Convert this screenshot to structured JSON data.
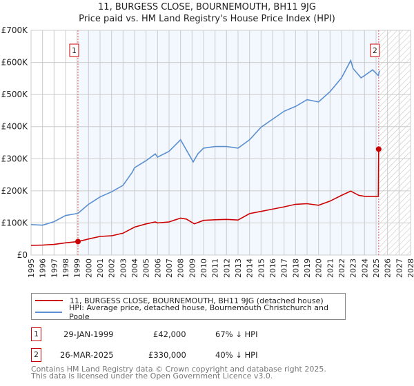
{
  "title_line1": "11, BURGESS CLOSE, BOURNEMOUTH, BH11 9JG",
  "title_line2": "Price paid vs. HM Land Registry's House Price Index (HPI)",
  "chart_data": {
    "type": "line",
    "xlim": [
      1995,
      2028
    ],
    "ylim": [
      0,
      700000
    ],
    "y_ticks": [
      {
        "v": 0,
        "label": "£0"
      },
      {
        "v": 100000,
        "label": "£100K"
      },
      {
        "v": 200000,
        "label": "£200K"
      },
      {
        "v": 300000,
        "label": "£300K"
      },
      {
        "v": 400000,
        "label": "£400K"
      },
      {
        "v": 500000,
        "label": "£500K"
      },
      {
        "v": 600000,
        "label": "£600K"
      },
      {
        "v": 700000,
        "label": "£700K"
      }
    ],
    "x_ticks": [
      "1995",
      "1996",
      "1997",
      "1998",
      "1999",
      "2000",
      "2001",
      "2002",
      "2003",
      "2004",
      "2005",
      "2006",
      "2007",
      "2008",
      "2009",
      "2010",
      "2011",
      "2012",
      "2013",
      "2014",
      "2015",
      "2016",
      "2017",
      "2018",
      "2019",
      "2020",
      "2021",
      "2022",
      "2023",
      "2024",
      "2025",
      "2026",
      "2027",
      "2028"
    ],
    "grid": true,
    "ownership_period": [
      1999.08,
      2025.23
    ],
    "forecast_from": 2025.3,
    "series": [
      {
        "name": "11, BURGESS CLOSE, BOURNEMOUTH, BH11 9JG (detached house)",
        "color": "#cc0000",
        "x": [
          1995,
          1996,
          1997,
          1998,
          1999.08,
          2000,
          2001,
          2002,
          2003,
          2004,
          2005,
          2005.8,
          2006,
          2007,
          2008,
          2008.5,
          2009.2,
          2010,
          2011,
          2012,
          2013,
          2014,
          2015,
          2016,
          2017,
          2018,
          2019,
          2020,
          2021,
          2022,
          2022.8,
          2023.5,
          2024,
          2025.2,
          2025.23,
          2025.3
        ],
        "y": [
          30000,
          31000,
          33000,
          38000,
          42000,
          50000,
          58000,
          60000,
          68000,
          87000,
          97000,
          103000,
          100000,
          103000,
          115000,
          112000,
          97000,
          108000,
          110000,
          111000,
          109000,
          129000,
          136000,
          143000,
          150000,
          158000,
          160000,
          155000,
          168000,
          186000,
          199000,
          186000,
          183000,
          183000,
          330000,
          335000
        ]
      },
      {
        "name": "HPI: Average price, detached house, Bournemouth Christchurch and Poole",
        "color": "#5b8fd0",
        "x": [
          1995,
          1996,
          1997,
          1998,
          1999.08,
          2000,
          2001,
          2002,
          2003,
          2003.8,
          2004,
          2005,
          2005.8,
          2006,
          2007,
          2008,
          2009.1,
          2009.5,
          2010,
          2011,
          2012,
          2013,
          2014,
          2015,
          2016,
          2017,
          2018,
          2019,
          2020,
          2021,
          2022,
          2022.8,
          2023,
          2023.7,
          2024,
          2024.7,
          2025.2,
          2025.3
        ],
        "y": [
          95000,
          93000,
          104000,
          123000,
          130000,
          158000,
          181000,
          197000,
          217000,
          258000,
          272000,
          294000,
          315000,
          305000,
          323000,
          359000,
          290000,
          315000,
          333000,
          338000,
          338000,
          333000,
          359000,
          398000,
          423000,
          448000,
          463000,
          484000,
          477000,
          509000,
          552000,
          606000,
          581000,
          552000,
          559000,
          577000,
          559000,
          574000
        ]
      }
    ],
    "markers": [
      {
        "label": "1",
        "x": 1999.08,
        "y": 42000
      },
      {
        "label": "2",
        "x": 2025.23,
        "y": 330000
      }
    ]
  },
  "legend": [
    {
      "label": "11, BURGESS CLOSE, BOURNEMOUTH, BH11 9JG (detached house)",
      "color": "#cc0000"
    },
    {
      "label": "HPI: Average price, detached house, Bournemouth Christchurch and Poole",
      "color": "#5b8fd0"
    }
  ],
  "transactions": [
    {
      "num": "1",
      "date": "29-JAN-1999",
      "price": "£42,000",
      "hpi": "67% ↓ HPI"
    },
    {
      "num": "2",
      "date": "26-MAR-2025",
      "price": "£330,000",
      "hpi": "40% ↓ HPI"
    }
  ],
  "footer_line1": "Contains HM Land Registry data © Crown copyright and database right 2025.",
  "footer_line2": "This data is licensed under the Open Government Licence v3.0."
}
